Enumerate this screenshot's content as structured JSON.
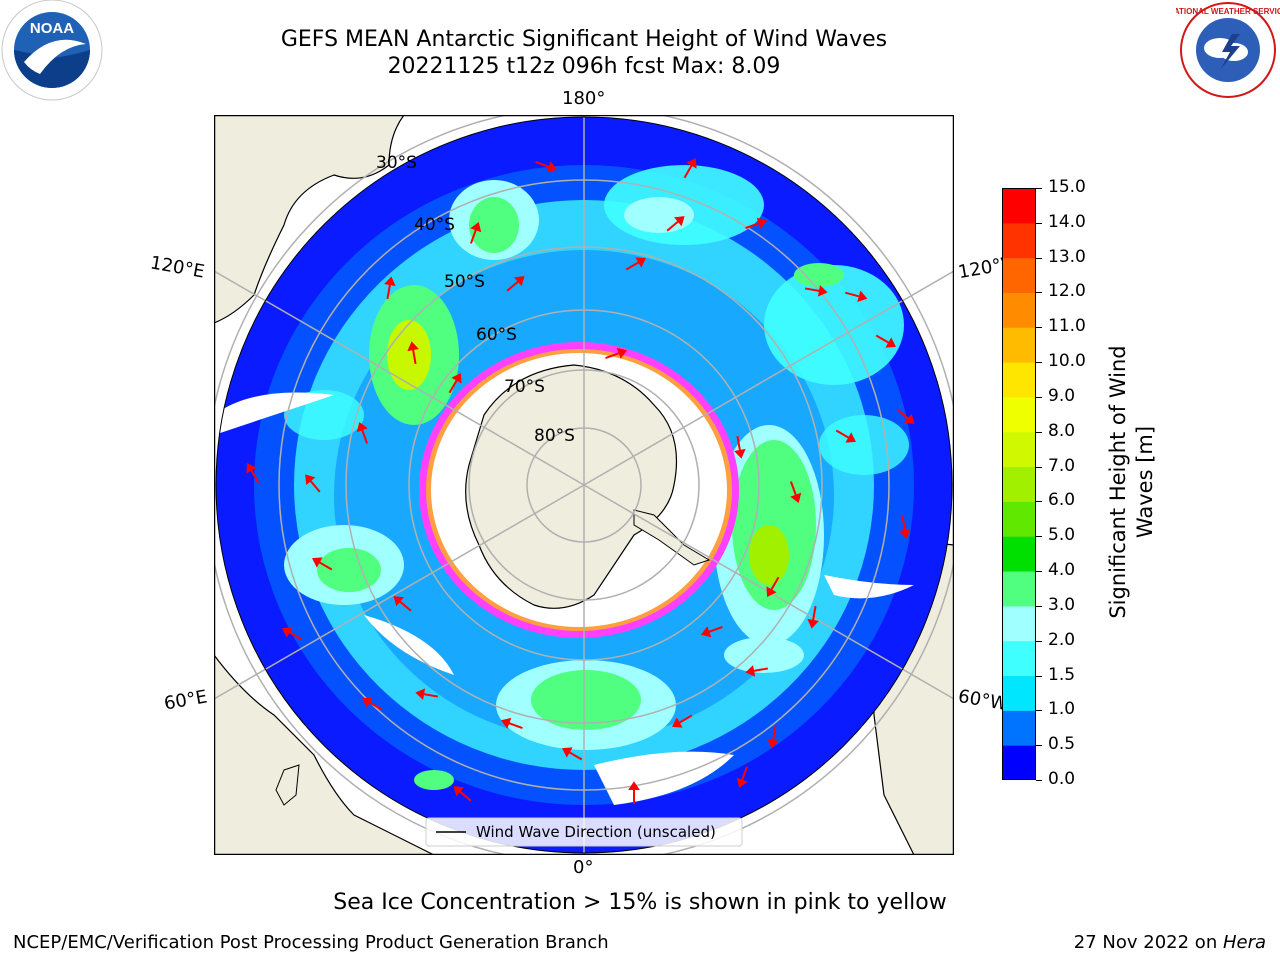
{
  "header": {
    "title_line1": "GEFS MEAN Antarctic Significant Height of Wind Waves",
    "title_line2": "20221125 t12z 096h fcst   Max: 8.09"
  },
  "logos": {
    "left": {
      "name": "noaa-logo",
      "text": "NOAA"
    },
    "right": {
      "name": "national-weather-service-logo",
      "text": "NATIONAL WEATHER SERVICE"
    }
  },
  "map": {
    "projection": "south-polar-stereographic",
    "longitude_labels": {
      "top": "180°",
      "upper_left": "120°E",
      "upper_right": "120°W",
      "lower_left": "60°E",
      "lower_right": "60°W",
      "bottom": "0°"
    },
    "latitude_labels": [
      "30°S",
      "40°S",
      "50°S",
      "60°S",
      "70°S",
      "80°S"
    ],
    "legend_label": "Wind Wave Direction (unscaled)",
    "ocean_color": "#ffffff",
    "land_color": "#efedde",
    "sea_ice_colors": [
      "#ff40ff",
      "#ff9f40",
      "#ffff40"
    ],
    "arrow_color": "#ff0000"
  },
  "colorbar": {
    "label_line1": "Significant Height of Wind",
    "label_line2": "Waves [m]",
    "ticks": [
      "0.0",
      "0.5",
      "1.0",
      "1.5",
      "2.0",
      "3.0",
      "4.0",
      "5.0",
      "6.0",
      "7.0",
      "8.0",
      "9.0",
      "10.0",
      "11.0",
      "12.0",
      "13.0",
      "14.0",
      "15.0"
    ],
    "colors": [
      "#0000ff",
      "#0073ff",
      "#00e6ff",
      "#40ffff",
      "#a0ffff",
      "#50ff80",
      "#00e000",
      "#60e800",
      "#a0f000",
      "#d0f800",
      "#f0ff00",
      "#ffe600",
      "#ffbb00",
      "#ff8c00",
      "#ff6600",
      "#ff3300",
      "#ff0000"
    ]
  },
  "captions": {
    "sea_ice_note": "Sea Ice Concentration > 15% is shown in pink to yellow",
    "footer_left": "NCEP/EMC/Verification Post Processing Product Generation Branch",
    "footer_date": "27 Nov 2022 on ",
    "footer_machine": "Hera"
  }
}
